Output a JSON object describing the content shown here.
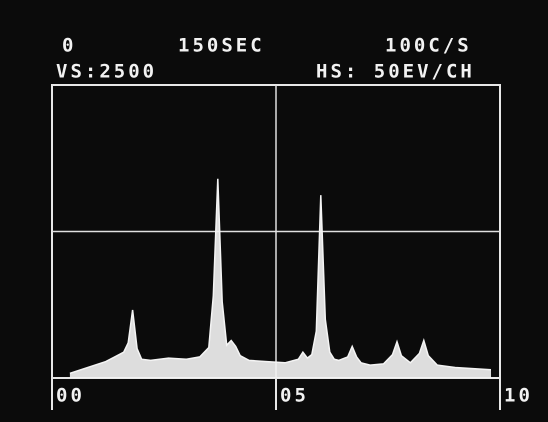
{
  "chart_data": {
    "type": "line",
    "header": [
      "0",
      "150SEC",
      "100C/S",
      "VS:2500",
      "HS: 50EV/CH"
    ],
    "x": [
      0.4,
      0.8,
      1.2,
      1.4,
      1.6,
      1.7,
      1.8,
      1.9,
      2.0,
      2.2,
      2.6,
      3.0,
      3.3,
      3.5,
      3.6,
      3.7,
      3.8,
      3.9,
      4.0,
      4.1,
      4.2,
      4.4,
      4.8,
      5.2,
      5.5,
      5.6,
      5.7,
      5.8,
      5.9,
      6.0,
      6.1,
      6.2,
      6.3,
      6.4,
      6.6,
      6.7,
      6.8,
      6.9,
      7.1,
      7.4,
      7.6,
      7.7,
      7.8,
      8.0,
      8.2,
      8.3,
      8.4,
      8.6,
      9.0,
      9.4,
      9.8
    ],
    "values": [
      40,
      90,
      140,
      180,
      220,
      300,
      580,
      250,
      160,
      150,
      170,
      160,
      180,
      260,
      700,
      1700,
      650,
      280,
      320,
      270,
      190,
      150,
      140,
      130,
      160,
      220,
      170,
      200,
      400,
      1560,
      500,
      220,
      160,
      150,
      180,
      270,
      180,
      130,
      110,
      120,
      200,
      310,
      190,
      130,
      210,
      320,
      190,
      110,
      90,
      80,
      70
    ],
    "color": "#f4f4f4",
    "xlim": [
      0,
      10
    ],
    "xticks": [
      {
        "value": 0,
        "label": "00"
      },
      {
        "value": 5,
        "label": "05"
      },
      {
        "value": 10,
        "label": "10"
      }
    ],
    "ylim": [
      0,
      2500
    ],
    "yticks": [
      1250
    ],
    "grid": true
  }
}
